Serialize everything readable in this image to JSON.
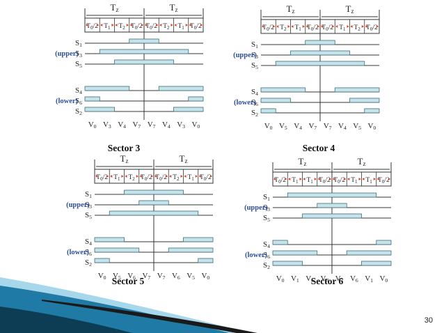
{
  "slide": {
    "page_number": "30"
  },
  "colors": {
    "bar_fill": "#c7e3ea",
    "bar_stroke": "#3b6f7a",
    "group_label": "#2e4fa0",
    "arrow": "#d43c1e",
    "line": "#333333",
    "swoosh_dark": "#0d3d55",
    "swoosh_mid": "#1f7ba6",
    "swoosh_light": "#5fb6d8"
  },
  "panels": [
    {
      "id": "sector-3",
      "title": "Sector 3",
      "tz_label": "Tz",
      "intervals": [
        "T0/2",
        "T1",
        "T2",
        "T0/2",
        "T0/2",
        "T2",
        "T1",
        "T0/2"
      ],
      "upper_label": "(upper)",
      "lower_label": "(lower)",
      "upper_rows": [
        {
          "sub": "1",
          "on": [
            3,
            5
          ]
        },
        {
          "sub": "3",
          "on": [
            1,
            7
          ]
        },
        {
          "sub": "5",
          "on": [
            2,
            6
          ]
        }
      ],
      "lower_rows": [
        {
          "sub": "4",
          "on": [
            [
              0,
              3
            ],
            [
              5,
              8
            ]
          ]
        },
        {
          "sub": "6",
          "on": [
            [
              0,
              1
            ],
            [
              7,
              8
            ]
          ]
        },
        {
          "sub": "2",
          "on": [
            [
              0,
              2
            ],
            [
              6,
              8
            ]
          ]
        }
      ],
      "vectors": [
        [
          "0"
        ],
        [
          "3"
        ],
        [
          "4"
        ],
        [
          "7"
        ],
        [
          "7"
        ],
        [
          "4"
        ],
        [
          "3"
        ],
        [
          "0"
        ]
      ]
    },
    {
      "id": "sector-4",
      "title": "Sector 4",
      "tz_label": "Tz",
      "intervals": [
        "T0/2",
        "T2",
        "T1",
        "T0/2",
        "T0/2",
        "T1",
        "T2",
        "T0/2"
      ],
      "upper_label": "(upper)",
      "lower_label": "(lower)",
      "upper_rows": [
        {
          "sub": "1",
          "on": [
            3,
            5
          ]
        },
        {
          "sub": "3",
          "on": [
            2,
            6
          ]
        },
        {
          "sub": "5",
          "on": [
            1,
            7
          ]
        }
      ],
      "lower_rows": [
        {
          "sub": "4",
          "on": [
            [
              0,
              3
            ],
            [
              5,
              8
            ]
          ]
        },
        {
          "sub": "6",
          "on": [
            [
              0,
              2
            ],
            [
              6,
              8
            ]
          ]
        },
        {
          "sub": "2",
          "on": [
            [
              0,
              1
            ],
            [
              7,
              8
            ]
          ]
        }
      ],
      "vectors": [
        [
          "0"
        ],
        [
          "5"
        ],
        [
          "4"
        ],
        [
          "7"
        ],
        [
          "7"
        ],
        [
          "4"
        ],
        [
          "5"
        ],
        [
          "0"
        ]
      ]
    },
    {
      "id": "sector-5",
      "title": "Sector 5",
      "tz_label": "Tz",
      "intervals": [
        "T0/2",
        "T1",
        "T2",
        "T0/2",
        "T0/2",
        "T2",
        "T1",
        "T0/2"
      ],
      "upper_label": "(upper)",
      "lower_label": "(lower)",
      "upper_rows": [
        {
          "sub": "1",
          "on": [
            2,
            6
          ]
        },
        {
          "sub": "3",
          "on": [
            3,
            5
          ]
        },
        {
          "sub": "5",
          "on": [
            1,
            7
          ]
        }
      ],
      "lower_rows": [
        {
          "sub": "4",
          "on": [
            [
              0,
              2
            ],
            [
              6,
              8
            ]
          ]
        },
        {
          "sub": "6",
          "on": [
            [
              0,
              3
            ],
            [
              5,
              8
            ]
          ]
        },
        {
          "sub": "2",
          "on": [
            [
              0,
              1
            ],
            [
              7,
              8
            ]
          ]
        }
      ],
      "vectors": [
        [
          "0"
        ],
        [
          "5"
        ],
        [
          "6"
        ],
        [
          "7"
        ],
        [
          "7"
        ],
        [
          "6"
        ],
        [
          "5"
        ],
        [
          "0"
        ]
      ]
    },
    {
      "id": "sector-6",
      "title": "Sector 6",
      "tz_label": "Tz",
      "intervals": [
        "T0/2",
        "T1",
        "T1",
        "T0/2",
        "T0/2",
        "T1",
        "T1",
        "T0/2"
      ],
      "upper_label": "(upper)",
      "lower_label": "(lower)",
      "upper_rows": [
        {
          "sub": "1",
          "on": [
            1,
            7
          ]
        },
        {
          "sub": "3",
          "on": [
            3,
            5
          ]
        },
        {
          "sub": "5",
          "on": [
            2,
            6
          ]
        }
      ],
      "lower_rows": [
        {
          "sub": "4",
          "on": [
            [
              0,
              1
            ],
            [
              7,
              8
            ]
          ]
        },
        {
          "sub": "6",
          "on": [
            [
              0,
              3
            ],
            [
              5,
              8
            ]
          ]
        },
        {
          "sub": "2",
          "on": [
            [
              0,
              2
            ],
            [
              6,
              8
            ]
          ]
        }
      ],
      "vectors": [
        [
          "0"
        ],
        [
          "1"
        ],
        [
          "6"
        ],
        [
          "7"
        ],
        [
          "7"
        ],
        [
          "6"
        ],
        [
          "1"
        ],
        [
          "0"
        ]
      ]
    }
  ]
}
